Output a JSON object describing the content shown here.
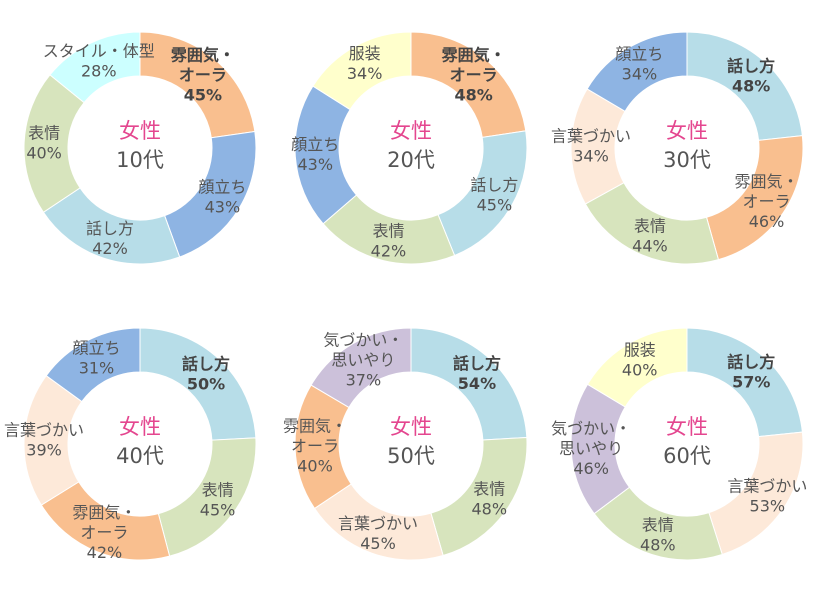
{
  "colors": {
    "スタイル・体型": "#ccffff",
    "雰囲気・オーラ": "#f9bf8f",
    "顔立ち": "#8eb4e3",
    "話し方": "#b7dde8",
    "表情": "#d7e4bd",
    "服装": "#ffffcc",
    "言葉づかい": "#fde9d9",
    "気づかい・思いやり": "#ccc1da"
  },
  "chart_data": [
    {
      "type": "pie",
      "donut": true,
      "gender": "女性",
      "age": "10代",
      "slices": [
        {
          "label": "雰囲気・オーラ",
          "label_lines": [
            "雰囲気・",
            "オーラ"
          ],
          "value": 45,
          "value_text": "45%",
          "bold": true
        },
        {
          "label": "顔立ち",
          "label_lines": [
            "顔立ち"
          ],
          "value": 43,
          "value_text": "43%"
        },
        {
          "label": "話し方",
          "label_lines": [
            "話し方"
          ],
          "value": 42,
          "value_text": "42%"
        },
        {
          "label": "表情",
          "label_lines": [
            "表情"
          ],
          "value": 40,
          "value_text": "40%"
        },
        {
          "label": "スタイル・体型",
          "label_lines": [
            "スタイル・体型"
          ],
          "value": 28,
          "value_text": "28%"
        }
      ]
    },
    {
      "type": "pie",
      "donut": true,
      "gender": "女性",
      "age": "20代",
      "slices": [
        {
          "label": "雰囲気・オーラ",
          "label_lines": [
            "雰囲気・",
            "オーラ"
          ],
          "value": 48,
          "value_text": "48%",
          "bold": true
        },
        {
          "label": "話し方",
          "label_lines": [
            "話し方"
          ],
          "value": 45,
          "value_text": "45%"
        },
        {
          "label": "表情",
          "label_lines": [
            "表情"
          ],
          "value": 42,
          "value_text": "42%"
        },
        {
          "label": "顔立ち",
          "label_lines": [
            "顔立ち"
          ],
          "value": 43,
          "value_text": "43%"
        },
        {
          "label": "服装",
          "label_lines": [
            "服装"
          ],
          "value": 34,
          "value_text": "34%"
        }
      ]
    },
    {
      "type": "pie",
      "donut": true,
      "gender": "女性",
      "age": "30代",
      "slices": [
        {
          "label": "話し方",
          "label_lines": [
            "話し方"
          ],
          "value": 48,
          "value_text": "48%",
          "bold": true
        },
        {
          "label": "雰囲気・オーラ",
          "label_lines": [
            "雰囲気・",
            "オーラ"
          ],
          "value": 46,
          "value_text": "46%"
        },
        {
          "label": "表情",
          "label_lines": [
            "表情"
          ],
          "value": 44,
          "value_text": "44%"
        },
        {
          "label": "言葉づかい",
          "label_lines": [
            "言葉づかい"
          ],
          "value": 34,
          "value_text": "34%"
        },
        {
          "label": "顔立ち",
          "label_lines": [
            "顔立ち"
          ],
          "value": 34,
          "value_text": "34%"
        }
      ]
    },
    {
      "type": "pie",
      "donut": true,
      "gender": "女性",
      "age": "40代",
      "slices": [
        {
          "label": "話し方",
          "label_lines": [
            "話し方"
          ],
          "value": 50,
          "value_text": "50%",
          "bold": true
        },
        {
          "label": "表情",
          "label_lines": [
            "表情"
          ],
          "value": 45,
          "value_text": "45%"
        },
        {
          "label": "雰囲気・オーラ",
          "label_lines": [
            "雰囲気・",
            "オーラ"
          ],
          "value": 42,
          "value_text": "42%"
        },
        {
          "label": "言葉づかい",
          "label_lines": [
            "言葉づかい"
          ],
          "value": 39,
          "value_text": "39%"
        },
        {
          "label": "顔立ち",
          "label_lines": [
            "顔立ち"
          ],
          "value": 31,
          "value_text": "31%"
        }
      ]
    },
    {
      "type": "pie",
      "donut": true,
      "gender": "女性",
      "age": "50代",
      "slices": [
        {
          "label": "話し方",
          "label_lines": [
            "話し方"
          ],
          "value": 54,
          "value_text": "54%",
          "bold": true
        },
        {
          "label": "表情",
          "label_lines": [
            "表情"
          ],
          "value": 48,
          "value_text": "48%"
        },
        {
          "label": "言葉づかい",
          "label_lines": [
            "言葉づかい"
          ],
          "value": 45,
          "value_text": "45%"
        },
        {
          "label": "雰囲気・オーラ",
          "label_lines": [
            "雰囲気・",
            "オーラ"
          ],
          "value": 40,
          "value_text": "40%"
        },
        {
          "label": "気づかい・思いやり",
          "label_lines": [
            "気づかい・",
            "思いやり"
          ],
          "value": 37,
          "value_text": "37%"
        }
      ]
    },
    {
      "type": "pie",
      "donut": true,
      "gender": "女性",
      "age": "60代",
      "slices": [
        {
          "label": "話し方",
          "label_lines": [
            "話し方"
          ],
          "value": 57,
          "value_text": "57%",
          "bold": true
        },
        {
          "label": "言葉づかい",
          "label_lines": [
            "言葉づかい"
          ],
          "value": 53,
          "value_text": "53%"
        },
        {
          "label": "表情",
          "label_lines": [
            "表情"
          ],
          "value": 48,
          "value_text": "48%"
        },
        {
          "label": "気づかい・思いやり",
          "label_lines": [
            "気づかい・",
            "思いやり"
          ],
          "value": 46,
          "value_text": "46%"
        },
        {
          "label": "服装",
          "label_lines": [
            "服装"
          ],
          "value": 40,
          "value_text": "40%"
        }
      ]
    }
  ]
}
